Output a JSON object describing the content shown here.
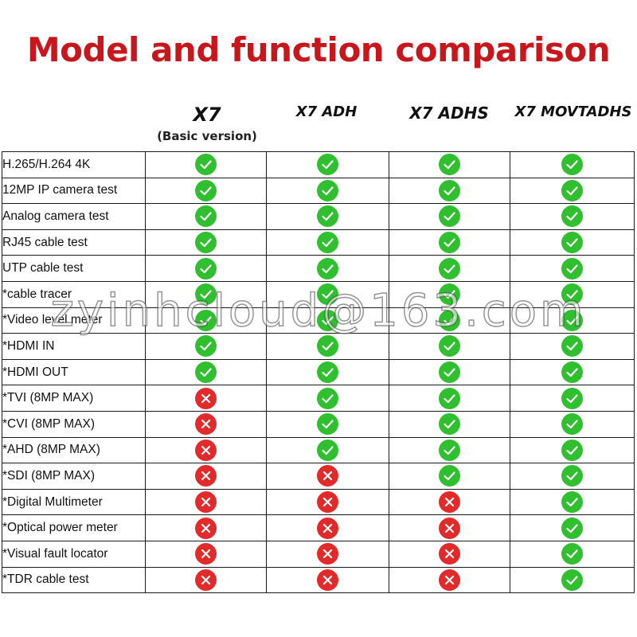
{
  "title": "Model and function comparison",
  "models": [
    {
      "name": "X7",
      "subtitle": "(Basic version)"
    },
    {
      "name": "X7 ADH"
    },
    {
      "name": "X7 ADHS"
    },
    {
      "name": "X7 MOVTADHS"
    }
  ],
  "features": [
    {
      "label": "H.265/H.264 4K",
      "support": [
        true,
        true,
        true,
        true
      ]
    },
    {
      "label": "12MP IP camera test",
      "support": [
        true,
        true,
        true,
        true
      ]
    },
    {
      "label": "Analog camera test",
      "support": [
        true,
        true,
        true,
        true
      ]
    },
    {
      "label": "RJ45 cable test",
      "support": [
        true,
        true,
        true,
        true
      ]
    },
    {
      "label": "UTP cable test",
      "support": [
        true,
        true,
        true,
        true
      ]
    },
    {
      "label": "*cable tracer",
      "support": [
        true,
        true,
        true,
        true
      ]
    },
    {
      "label": "*Video level meter",
      "support": [
        true,
        true,
        true,
        true
      ]
    },
    {
      "label": "*HDMI IN",
      "support": [
        true,
        true,
        true,
        true
      ]
    },
    {
      "label": "*HDMI OUT",
      "support": [
        true,
        true,
        true,
        true
      ]
    },
    {
      "label": "*TVI (8MP MAX)",
      "support": [
        false,
        true,
        true,
        true
      ]
    },
    {
      "label": "*CVI (8MP MAX)",
      "support": [
        false,
        true,
        true,
        true
      ]
    },
    {
      "label": "*AHD (8MP MAX)",
      "support": [
        false,
        true,
        true,
        true
      ]
    },
    {
      "label": "*SDI (8MP MAX)",
      "support": [
        false,
        false,
        true,
        true
      ]
    },
    {
      "label": "*Digital Multimeter",
      "support": [
        false,
        false,
        false,
        true
      ]
    },
    {
      "label": "*Optical power meter",
      "support": [
        false,
        false,
        false,
        true
      ]
    },
    {
      "label": "*Visual fault locator",
      "support": [
        false,
        false,
        false,
        true
      ]
    },
    {
      "label": "*TDR cable test",
      "support": [
        false,
        false,
        false,
        true
      ]
    }
  ],
  "icons": {
    "yes": "check-circle-icon",
    "no": "cross-circle-icon"
  },
  "colors": {
    "title": "#c8161d",
    "yes": "#2fbf2f",
    "no": "#e32a2a"
  },
  "watermark": "zyinhcloud@163.com"
}
